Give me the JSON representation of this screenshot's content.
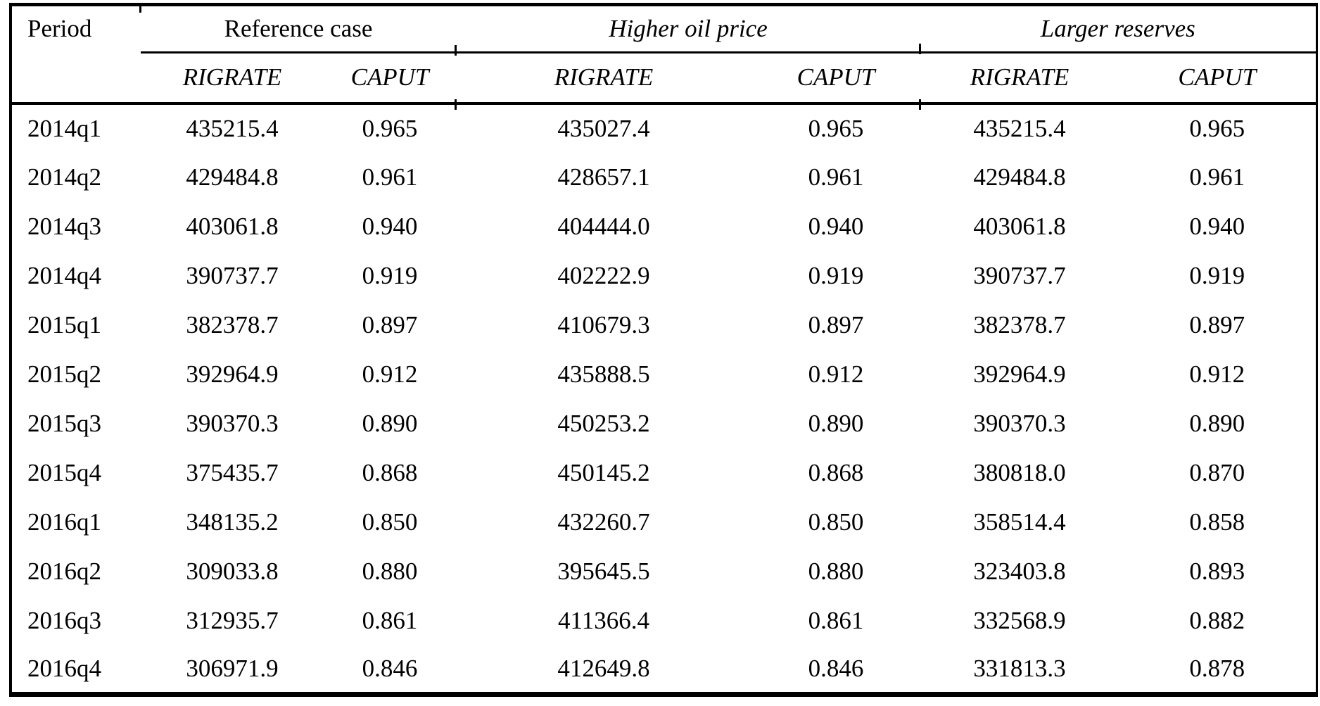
{
  "chart_data": {
    "type": "table",
    "corner_header": "Period",
    "group_headers": [
      "Reference case",
      "Higher oil price",
      "Larger reserves"
    ],
    "sub_headers": [
      "RIGRATE",
      "CAPUT",
      "RIGRATE",
      "CAPUT",
      "RIGRATE",
      "CAPUT"
    ],
    "rows": [
      [
        "2014q1",
        "435215.4",
        "0.965",
        "435027.4",
        "0.965",
        "435215.4",
        "0.965"
      ],
      [
        "2014q2",
        "429484.8",
        "0.961",
        "428657.1",
        "0.961",
        "429484.8",
        "0.961"
      ],
      [
        "2014q3",
        "403061.8",
        "0.940",
        "404444.0",
        "0.940",
        "403061.8",
        "0.940"
      ],
      [
        "2014q4",
        "390737.7",
        "0.919",
        "402222.9",
        "0.919",
        "390737.7",
        "0.919"
      ],
      [
        "2015q1",
        "382378.7",
        "0.897",
        "410679.3",
        "0.897",
        "382378.7",
        "0.897"
      ],
      [
        "2015q2",
        "392964.9",
        "0.912",
        "435888.5",
        "0.912",
        "392964.9",
        "0.912"
      ],
      [
        "2015q3",
        "390370.3",
        "0.890",
        "450253.2",
        "0.890",
        "390370.3",
        "0.890"
      ],
      [
        "2015q4",
        "375435.7",
        "0.868",
        "450145.2",
        "0.868",
        "380818.0",
        "0.870"
      ],
      [
        "2016q1",
        "348135.2",
        "0.850",
        "432260.7",
        "0.850",
        "358514.4",
        "0.858"
      ],
      [
        "2016q2",
        "309033.8",
        "0.880",
        "395645.5",
        "0.880",
        "323403.8",
        "0.893"
      ],
      [
        "2016q3",
        "312935.7",
        "0.861",
        "411366.4",
        "0.861",
        "332568.9",
        "0.882"
      ],
      [
        "2016q4",
        "306971.9",
        "0.846",
        "412649.8",
        "0.846",
        "331813.3",
        "0.878"
      ]
    ],
    "text_color": "#000000",
    "border_color": "#000000",
    "background_color": "#ffffff"
  }
}
